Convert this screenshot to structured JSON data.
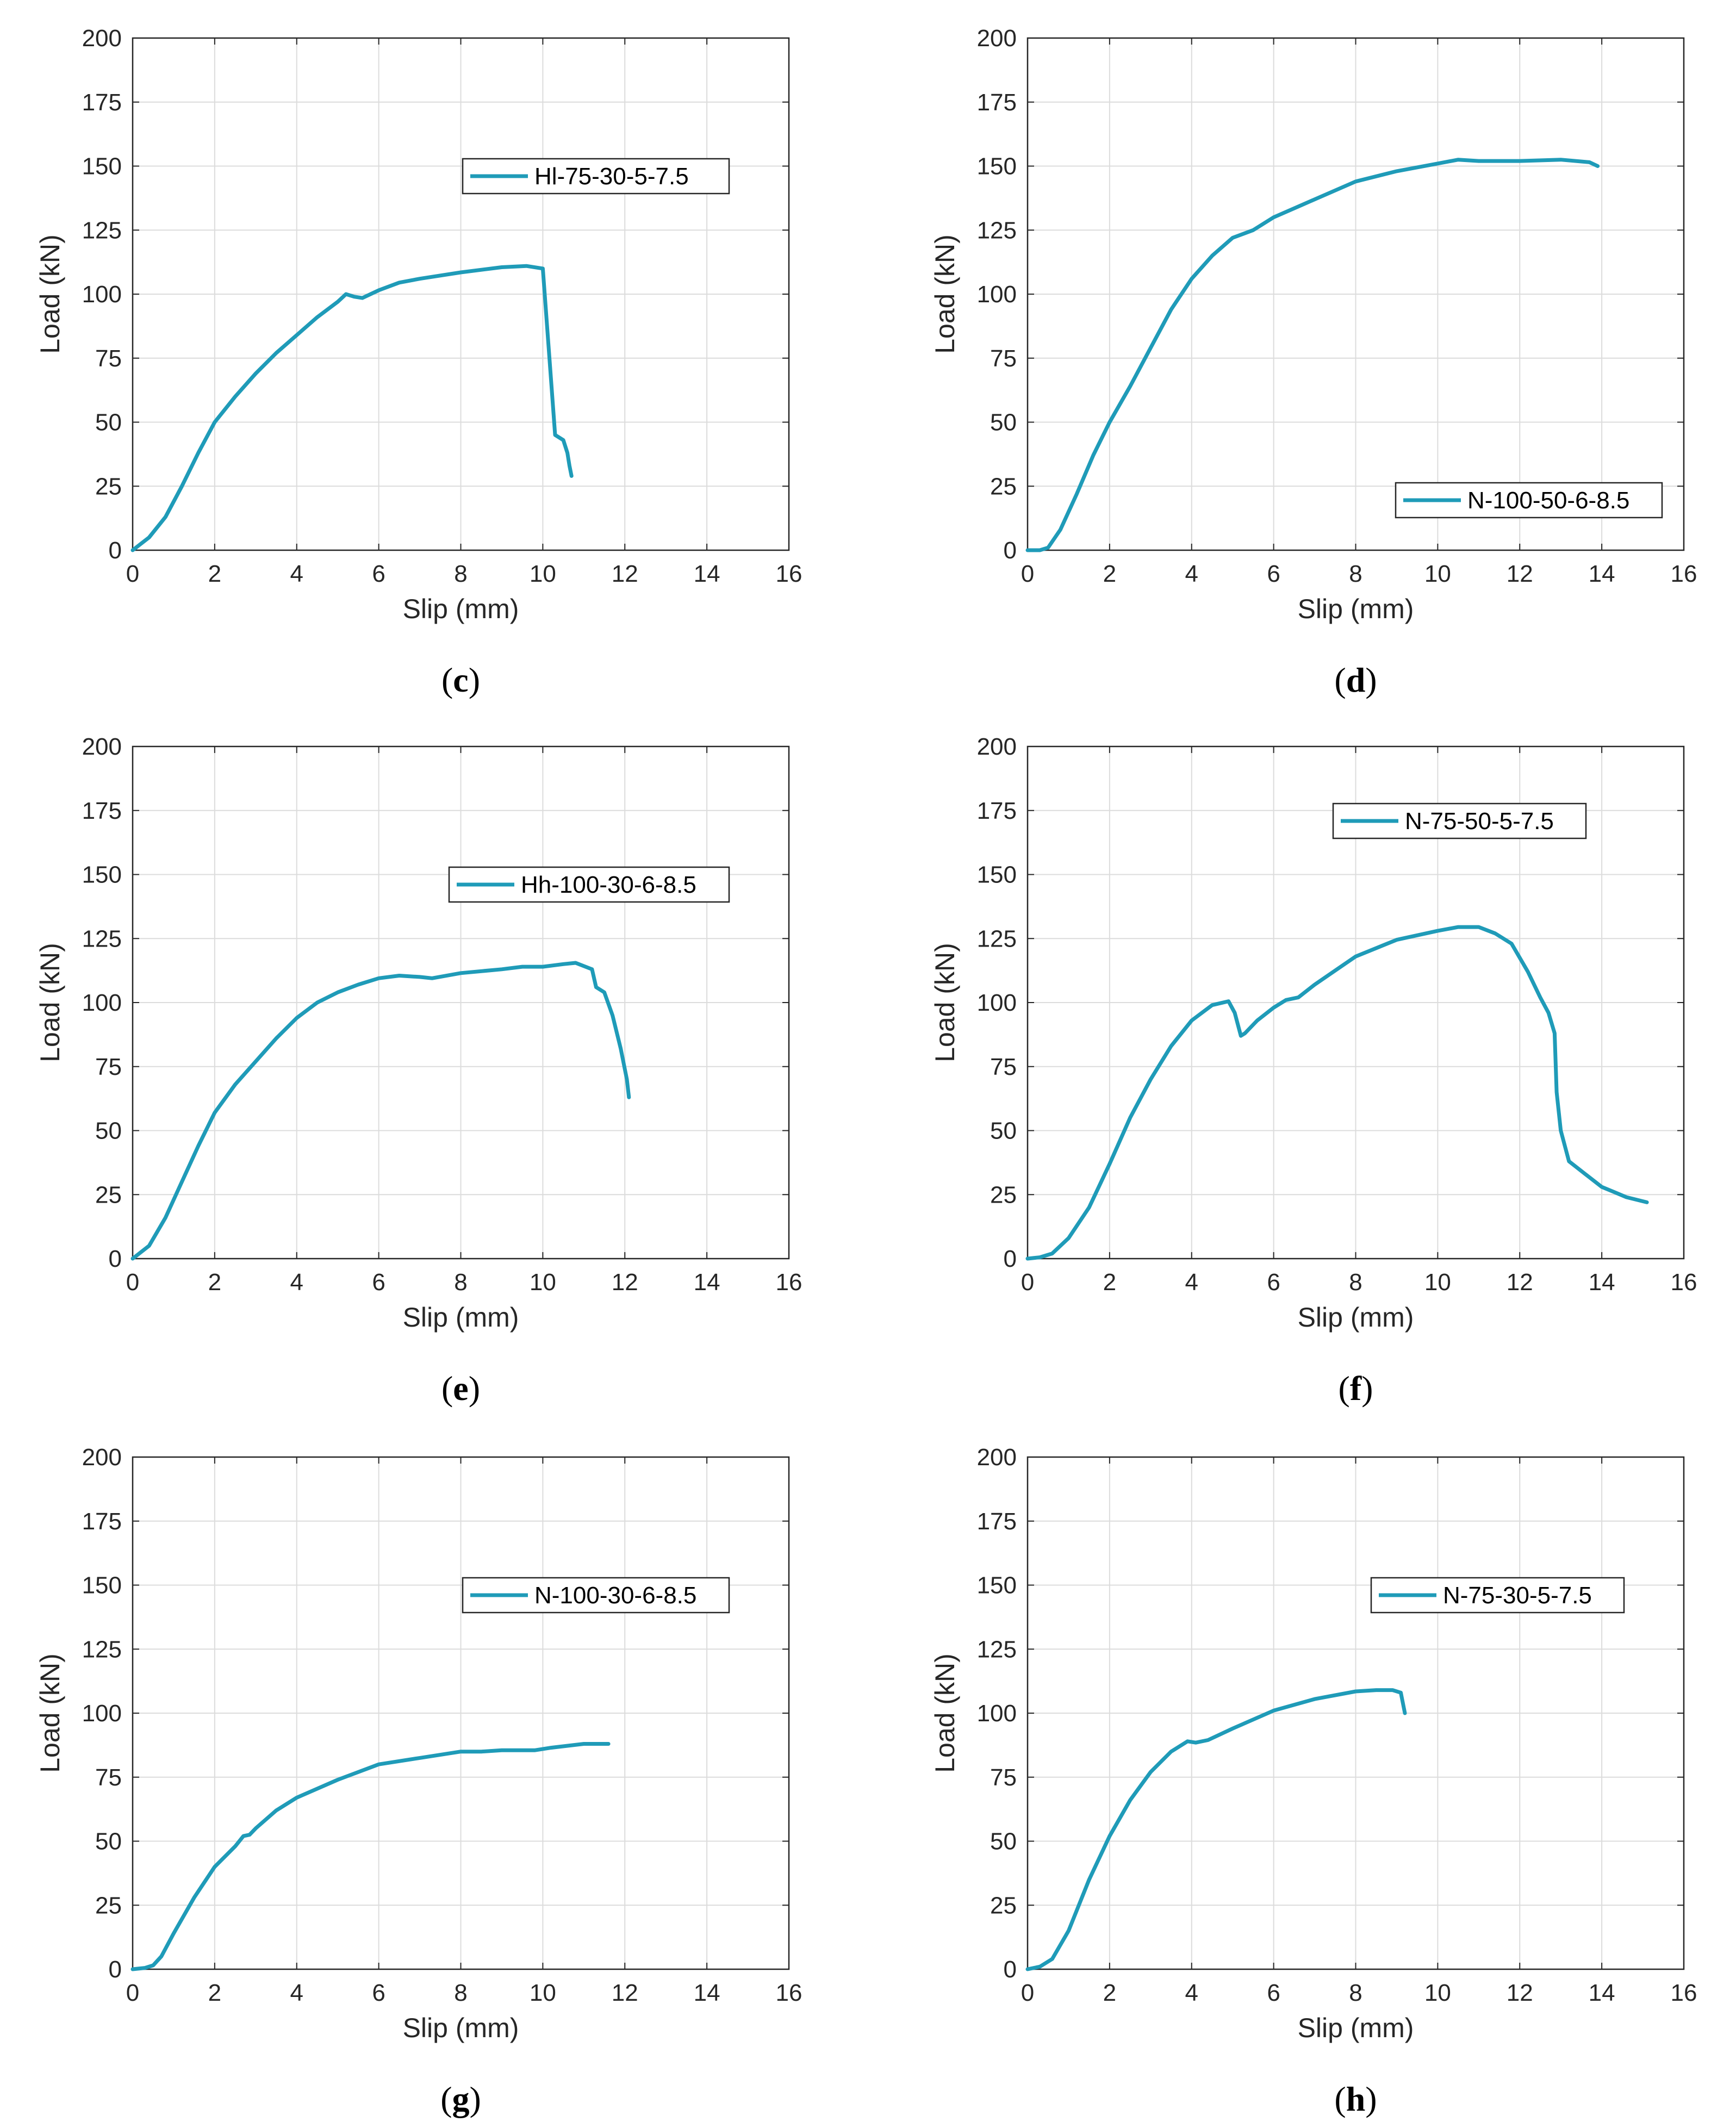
{
  "figure": {
    "series_color": "#1f9bb8",
    "grid_color": "#dcdcdc",
    "axis_color": "#262626"
  },
  "chart_data": [
    {
      "type": "line",
      "panel": "(c)",
      "caption_letter": "c",
      "xlabel": "Slip (mm)",
      "ylabel": "Load (kN)",
      "xlim": [
        0,
        16
      ],
      "ylim": [
        0,
        200
      ],
      "xticks": [
        0,
        2,
        4,
        6,
        8,
        10,
        12,
        14,
        16
      ],
      "yticks": [
        0,
        25,
        50,
        75,
        100,
        125,
        150,
        175,
        200
      ],
      "grid": true,
      "legend_position": "upper-right",
      "series": [
        {
          "name": "Hl-75-30-5-7.5",
          "x": [
            0,
            0.4,
            0.8,
            1.2,
            1.6,
            2.0,
            2.5,
            3.0,
            3.5,
            4.0,
            4.5,
            5.0,
            5.2,
            5.4,
            5.6,
            6.0,
            6.5,
            7.0,
            8.0,
            9.0,
            9.6,
            10.0,
            10.3,
            10.5,
            10.6,
            10.65,
            10.7
          ],
          "y": [
            0,
            5,
            13,
            25,
            38,
            50,
            60,
            69,
            77,
            84,
            91,
            97,
            100,
            99,
            98.5,
            101.5,
            104.5,
            106,
            108.5,
            110.5,
            111,
            110,
            45,
            43,
            38,
            33,
            29
          ]
        }
      ]
    },
    {
      "type": "line",
      "panel": "(d)",
      "caption_letter": "d",
      "xlabel": "Slip (mm)",
      "ylabel": "Load (kN)",
      "xlim": [
        0,
        16
      ],
      "ylim": [
        0,
        200
      ],
      "xticks": [
        0,
        2,
        4,
        6,
        8,
        10,
        12,
        14,
        16
      ],
      "yticks": [
        0,
        25,
        50,
        75,
        100,
        125,
        150,
        175,
        200
      ],
      "grid": true,
      "legend_position": "lower-right",
      "series": [
        {
          "name": "N-100-50-6-8.5",
          "x": [
            0,
            0.3,
            0.5,
            0.8,
            1.2,
            1.6,
            2.0,
            2.5,
            3.0,
            3.5,
            4.0,
            4.5,
            5.0,
            5.5,
            6.0,
            7.0,
            8.0,
            9.0,
            10.0,
            10.5,
            11.0,
            12.0,
            13.0,
            13.7,
            13.9
          ],
          "y": [
            0,
            0,
            1,
            8,
            22,
            37,
            50,
            64,
            79,
            94,
            106,
            115,
            122,
            125,
            130,
            137,
            144,
            148,
            151,
            152.5,
            152,
            152,
            152.5,
            151.5,
            150
          ]
        }
      ]
    },
    {
      "type": "line",
      "panel": "(e)",
      "caption_letter": "e",
      "xlabel": "Slip (mm)",
      "ylabel": "Load (kN)",
      "xlim": [
        0,
        16
      ],
      "ylim": [
        0,
        200
      ],
      "xticks": [
        0,
        2,
        4,
        6,
        8,
        10,
        12,
        14,
        16
      ],
      "yticks": [
        0,
        25,
        50,
        75,
        100,
        125,
        150,
        175,
        200
      ],
      "grid": true,
      "legend_position": "upper-right",
      "series": [
        {
          "name": "Hh-100-30-6-8.5",
          "x": [
            0,
            0.4,
            0.8,
            1.2,
            1.6,
            2.0,
            2.5,
            3.0,
            3.5,
            4.0,
            4.5,
            5.0,
            5.5,
            6.0,
            6.5,
            7.0,
            7.3,
            8.0,
            9.0,
            9.5,
            10.0,
            10.5,
            10.8,
            11.2,
            11.3,
            11.5,
            11.7,
            11.9,
            12.05,
            12.1
          ],
          "y": [
            0,
            5,
            16,
            30,
            44,
            57,
            68,
            77,
            86,
            94,
            100,
            104,
            107,
            109.5,
            110.5,
            110,
            109.5,
            111.5,
            113,
            114,
            114,
            115,
            115.5,
            113,
            106,
            104,
            95,
            82,
            70,
            63
          ]
        }
      ]
    },
    {
      "type": "line",
      "panel": "(f)",
      "caption_letter": "f",
      "xlabel": "Slip (mm)",
      "ylabel": "Load (kN)",
      "xlim": [
        0,
        16
      ],
      "ylim": [
        0,
        200
      ],
      "xticks": [
        0,
        2,
        4,
        6,
        8,
        10,
        12,
        14,
        16
      ],
      "yticks": [
        0,
        25,
        50,
        75,
        100,
        125,
        150,
        175,
        200
      ],
      "grid": true,
      "legend_position": "top-right",
      "series": [
        {
          "name": "N-75-50-5-7.5",
          "x": [
            0,
            0.3,
            0.6,
            1.0,
            1.5,
            2.0,
            2.5,
            3.0,
            3.5,
            4.0,
            4.5,
            4.9,
            5.05,
            5.2,
            5.3,
            5.6,
            6.0,
            6.3,
            6.6,
            7.0,
            8.0,
            9.0,
            10.0,
            10.5,
            11.0,
            11.4,
            11.8,
            12.2,
            12.5,
            12.7,
            12.85,
            12.9,
            13.0,
            13.2,
            13.6,
            14.0,
            14.3,
            14.6,
            15.1
          ],
          "y": [
            0,
            0.5,
            2,
            8,
            20,
            37,
            55,
            70,
            83,
            93,
            99,
            100.5,
            96,
            87,
            88,
            93,
            98,
            101,
            102,
            107,
            118,
            124.5,
            128,
            129.5,
            129.5,
            127,
            123,
            112,
            102,
            96,
            88,
            65,
            50,
            38,
            33,
            28,
            26,
            24,
            22
          ]
        }
      ]
    },
    {
      "type": "line",
      "panel": "(g)",
      "caption_letter": "g",
      "xlabel": "Slip (mm)",
      "ylabel": "Load (kN)",
      "xlim": [
        0,
        16
      ],
      "ylim": [
        0,
        200
      ],
      "xticks": [
        0,
        2,
        4,
        6,
        8,
        10,
        12,
        14,
        16
      ],
      "yticks": [
        0,
        25,
        50,
        75,
        100,
        125,
        150,
        175,
        200
      ],
      "grid": true,
      "legend_position": "upper-right",
      "series": [
        {
          "name": "N-100-30-6-8.5",
          "x": [
            0,
            0.3,
            0.5,
            0.7,
            1.0,
            1.5,
            2.0,
            2.5,
            2.7,
            2.85,
            3.0,
            3.5,
            4.0,
            5.0,
            6.0,
            7.0,
            8.0,
            8.5,
            9.0,
            9.8,
            10.2,
            11.0,
            11.6
          ],
          "y": [
            0,
            0.5,
            1.5,
            5,
            14,
            28,
            40,
            48,
            52,
            52.5,
            55,
            62,
            67,
            74,
            80,
            82.5,
            85,
            85,
            85.5,
            85.5,
            86.5,
            88,
            88
          ]
        }
      ]
    },
    {
      "type": "line",
      "panel": "(h)",
      "caption_letter": "h",
      "xlabel": "Slip (mm)",
      "ylabel": "Load (kN)",
      "xlim": [
        0,
        16
      ],
      "ylim": [
        0,
        200
      ],
      "xticks": [
        0,
        2,
        4,
        6,
        8,
        10,
        12,
        14,
        16
      ],
      "yticks": [
        0,
        25,
        50,
        75,
        100,
        125,
        150,
        175,
        200
      ],
      "grid": true,
      "legend_position": "upper-right",
      "series": [
        {
          "name": "N-75-30-5-7.5",
          "x": [
            0,
            0.3,
            0.6,
            1.0,
            1.5,
            2.0,
            2.5,
            3.0,
            3.5,
            3.9,
            4.1,
            4.4,
            5.0,
            6.0,
            7.0,
            8.0,
            8.5,
            8.9,
            9.1,
            9.2
          ],
          "y": [
            0,
            1,
            4,
            15,
            35,
            52,
            66,
            77,
            85,
            89,
            88.5,
            89.5,
            94,
            101,
            105.5,
            108.5,
            109,
            109,
            108,
            100
          ]
        }
      ]
    }
  ]
}
